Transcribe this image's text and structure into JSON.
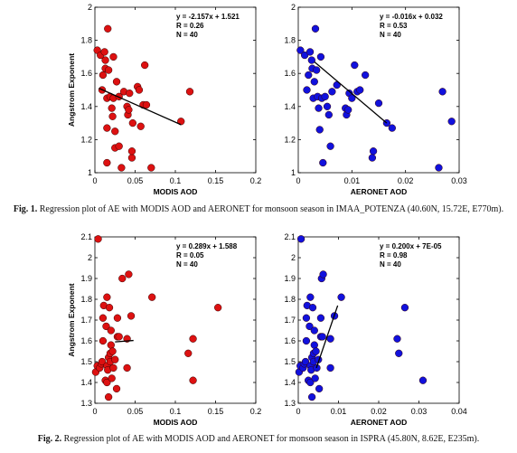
{
  "figures": [
    {
      "label": "Fig. 1.",
      "caption": "Regression plot of AE with MODIS AOD and AERONET for monsoon season in IMAA_POTENZA (40.60N, 15.72E, E770m)."
    },
    {
      "label": "Fig. 2.",
      "caption": "Regression plot of AE with MODIS AOD and AERONET for monsoon season in ISPRA (45.80N, 8.62E, E235m)."
    }
  ],
  "chart_data": [
    {
      "type": "scatter",
      "figure": 1,
      "panel": "left",
      "xlabel": "MODIS AOD",
      "ylabel": "Angstrom Exponent",
      "xlim": [
        0,
        0.2
      ],
      "ylim": [
        1,
        2
      ],
      "xticks": [
        "0",
        "0.05",
        "0.1",
        "0.15",
        "0.2"
      ],
      "yticks": [
        "1",
        "1.2",
        "1.4",
        "1.6",
        "1.8",
        "2"
      ],
      "stats": [
        "y = -2.157x + 1.521",
        "R = 0.26",
        "N = 40"
      ],
      "color": "#dd1111",
      "regression": {
        "slope": -2.157,
        "intercept": 1.521,
        "x_range": [
          0.005,
          0.107
        ]
      },
      "points": [
        [
          0.003,
          1.74
        ],
        [
          0.007,
          1.71
        ],
        [
          0.009,
          1.5
        ],
        [
          0.01,
          1.59
        ],
        [
          0.012,
          1.73
        ],
        [
          0.013,
          1.68
        ],
        [
          0.013,
          1.63
        ],
        [
          0.015,
          1.45
        ],
        [
          0.015,
          1.27
        ],
        [
          0.015,
          1.06
        ],
        [
          0.016,
          1.87
        ],
        [
          0.017,
          1.62
        ],
        [
          0.019,
          1.46
        ],
        [
          0.021,
          1.39
        ],
        [
          0.022,
          1.34
        ],
        [
          0.023,
          1.7
        ],
        [
          0.023,
          1.45
        ],
        [
          0.025,
          1.25
        ],
        [
          0.025,
          1.15
        ],
        [
          0.027,
          1.55
        ],
        [
          0.03,
          1.46
        ],
        [
          0.03,
          1.16
        ],
        [
          0.033,
          1.03
        ],
        [
          0.036,
          1.49
        ],
        [
          0.04,
          1.4
        ],
        [
          0.041,
          1.35
        ],
        [
          0.042,
          1.38
        ],
        [
          0.043,
          1.48
        ],
        [
          0.046,
          1.09
        ],
        [
          0.046,
          1.13
        ],
        [
          0.047,
          1.3
        ],
        [
          0.053,
          1.52
        ],
        [
          0.055,
          1.5
        ],
        [
          0.057,
          1.28
        ],
        [
          0.06,
          1.41
        ],
        [
          0.062,
          1.65
        ],
        [
          0.064,
          1.41
        ],
        [
          0.07,
          1.03
        ],
        [
          0.107,
          1.31
        ],
        [
          0.118,
          1.49
        ]
      ]
    },
    {
      "type": "scatter",
      "figure": 1,
      "panel": "right",
      "xlabel": "AERONET AOD",
      "ylabel": "",
      "xlim": [
        0,
        0.03
      ],
      "ylim": [
        1,
        2
      ],
      "xticks": [
        "0",
        "0.01",
        "0.02",
        "0.03"
      ],
      "yticks": [
        "1",
        "1.2",
        "1.4",
        "1.6",
        "1.8",
        "2"
      ],
      "stats": [
        "y = -0.016x + 0.032",
        "R = 0.53",
        "N = 40"
      ],
      "color": "#1111dd",
      "regression": {
        "x_range": [
          0.003,
          0.0165
        ],
        "y_range": [
          1.67,
          1.3
        ]
      },
      "points": [
        [
          0.0004,
          1.74
        ],
        [
          0.0012,
          1.71
        ],
        [
          0.0016,
          1.5
        ],
        [
          0.0019,
          1.59
        ],
        [
          0.0022,
          1.73
        ],
        [
          0.0025,
          1.68
        ],
        [
          0.0026,
          1.63
        ],
        [
          0.0028,
          1.45
        ],
        [
          0.003,
          1.55
        ],
        [
          0.0032,
          1.87
        ],
        [
          0.0034,
          1.62
        ],
        [
          0.0036,
          1.46
        ],
        [
          0.0038,
          1.39
        ],
        [
          0.004,
          1.26
        ],
        [
          0.0042,
          1.7
        ],
        [
          0.0044,
          1.45
        ],
        [
          0.0046,
          1.06
        ],
        [
          0.005,
          1.46
        ],
        [
          0.0054,
          1.4
        ],
        [
          0.0057,
          1.35
        ],
        [
          0.006,
          1.16
        ],
        [
          0.0063,
          1.49
        ],
        [
          0.0072,
          1.53
        ],
        [
          0.0088,
          1.39
        ],
        [
          0.009,
          1.35
        ],
        [
          0.0093,
          1.38
        ],
        [
          0.0095,
          1.48
        ],
        [
          0.01,
          1.45
        ],
        [
          0.0105,
          1.65
        ],
        [
          0.011,
          1.49
        ],
        [
          0.0115,
          1.5
        ],
        [
          0.0125,
          1.59
        ],
        [
          0.0138,
          1.09
        ],
        [
          0.014,
          1.13
        ],
        [
          0.015,
          1.42
        ],
        [
          0.0165,
          1.3
        ],
        [
          0.0175,
          1.27
        ],
        [
          0.0262,
          1.03
        ],
        [
          0.0269,
          1.49
        ],
        [
          0.0286,
          1.31
        ]
      ]
    },
    {
      "type": "scatter",
      "figure": 2,
      "panel": "left",
      "xlabel": "MODIS AOD",
      "ylabel": "Angstrom Exponent",
      "xlim": [
        0,
        0.2
      ],
      "ylim": [
        1.3,
        2.1
      ],
      "xticks": [
        "0",
        "0.05",
        "0.1",
        "0.15",
        "0.2"
      ],
      "yticks": [
        "1.3",
        "1.4",
        "1.5",
        "1.6",
        "1.7",
        "1.8",
        "1.9",
        "2",
        "2.1"
      ],
      "stats": [
        "y = 0.289x + 1.588",
        "R = 0.05",
        "N = 40"
      ],
      "color": "#dd1111",
      "regression": {
        "slope": 0.289,
        "intercept": 1.588,
        "x_range": [
          0.025,
          0.048
        ]
      },
      "points": [
        [
          0.001,
          1.45
        ],
        [
          0.003,
          1.48
        ],
        [
          0.004,
          2.09
        ],
        [
          0.006,
          1.47
        ],
        [
          0.008,
          1.49
        ],
        [
          0.009,
          1.5
        ],
        [
          0.01,
          1.71
        ],
        [
          0.01,
          1.6
        ],
        [
          0.011,
          1.77
        ],
        [
          0.013,
          1.41
        ],
        [
          0.014,
          1.67
        ],
        [
          0.015,
          1.48
        ],
        [
          0.015,
          1.81
        ],
        [
          0.015,
          1.4
        ],
        [
          0.016,
          1.46
        ],
        [
          0.017,
          1.33
        ],
        [
          0.017,
          1.52
        ],
        [
          0.018,
          1.76
        ],
        [
          0.019,
          1.5
        ],
        [
          0.019,
          1.54
        ],
        [
          0.02,
          1.58
        ],
        [
          0.02,
          1.65
        ],
        [
          0.021,
          1.42
        ],
        [
          0.022,
          1.55
        ],
        [
          0.023,
          1.47
        ],
        [
          0.025,
          1.51
        ],
        [
          0.027,
          1.37
        ],
        [
          0.028,
          1.71
        ],
        [
          0.028,
          1.62
        ],
        [
          0.03,
          1.62
        ],
        [
          0.034,
          1.9
        ],
        [
          0.04,
          1.47
        ],
        [
          0.04,
          1.61
        ],
        [
          0.042,
          1.92
        ],
        [
          0.045,
          1.72
        ],
        [
          0.071,
          1.81
        ],
        [
          0.116,
          1.54
        ],
        [
          0.122,
          1.61
        ],
        [
          0.122,
          1.41
        ],
        [
          0.153,
          1.76
        ]
      ]
    },
    {
      "type": "scatter",
      "figure": 2,
      "panel": "right",
      "xlabel": "AERONET AOD",
      "ylabel": "",
      "xlim": [
        0,
        0.04
      ],
      "ylim": [
        1.3,
        2.1
      ],
      "xticks": [
        "0",
        "0.01",
        "0.02",
        "0.03",
        "0.04"
      ],
      "yticks": [
        "1.3",
        "1.4",
        "1.5",
        "1.6",
        "1.7",
        "1.8",
        "1.9",
        "2",
        "2.1"
      ],
      "stats": [
        "y = 0.200x + 7E-05",
        "R = 0.98",
        "N = 40"
      ],
      "color": "#1111dd",
      "regression": {
        "x_range": [
          0.0045,
          0.0098
        ],
        "y_range": [
          1.47,
          1.77
        ]
      },
      "points": [
        [
          0.0002,
          1.45
        ],
        [
          0.0005,
          1.48
        ],
        [
          0.0007,
          2.09
        ],
        [
          0.0012,
          1.47
        ],
        [
          0.0015,
          1.49
        ],
        [
          0.0018,
          1.5
        ],
        [
          0.002,
          1.71
        ],
        [
          0.002,
          1.6
        ],
        [
          0.0022,
          1.77
        ],
        [
          0.0025,
          1.41
        ],
        [
          0.0028,
          1.67
        ],
        [
          0.003,
          1.48
        ],
        [
          0.003,
          1.81
        ],
        [
          0.003,
          1.4
        ],
        [
          0.0032,
          1.46
        ],
        [
          0.0034,
          1.33
        ],
        [
          0.0034,
          1.52
        ],
        [
          0.0036,
          1.76
        ],
        [
          0.0038,
          1.5
        ],
        [
          0.0038,
          1.54
        ],
        [
          0.004,
          1.58
        ],
        [
          0.004,
          1.65
        ],
        [
          0.0042,
          1.42
        ],
        [
          0.0044,
          1.55
        ],
        [
          0.0046,
          1.47
        ],
        [
          0.005,
          1.51
        ],
        [
          0.0052,
          1.37
        ],
        [
          0.0056,
          1.71
        ],
        [
          0.0056,
          1.62
        ],
        [
          0.006,
          1.62
        ],
        [
          0.0058,
          1.9
        ],
        [
          0.0062,
          1.92
        ],
        [
          0.008,
          1.47
        ],
        [
          0.008,
          1.61
        ],
        [
          0.009,
          1.72
        ],
        [
          0.0107,
          1.81
        ],
        [
          0.025,
          1.54
        ],
        [
          0.0246,
          1.61
        ],
        [
          0.0265,
          1.76
        ],
        [
          0.031,
          1.41
        ]
      ]
    }
  ]
}
